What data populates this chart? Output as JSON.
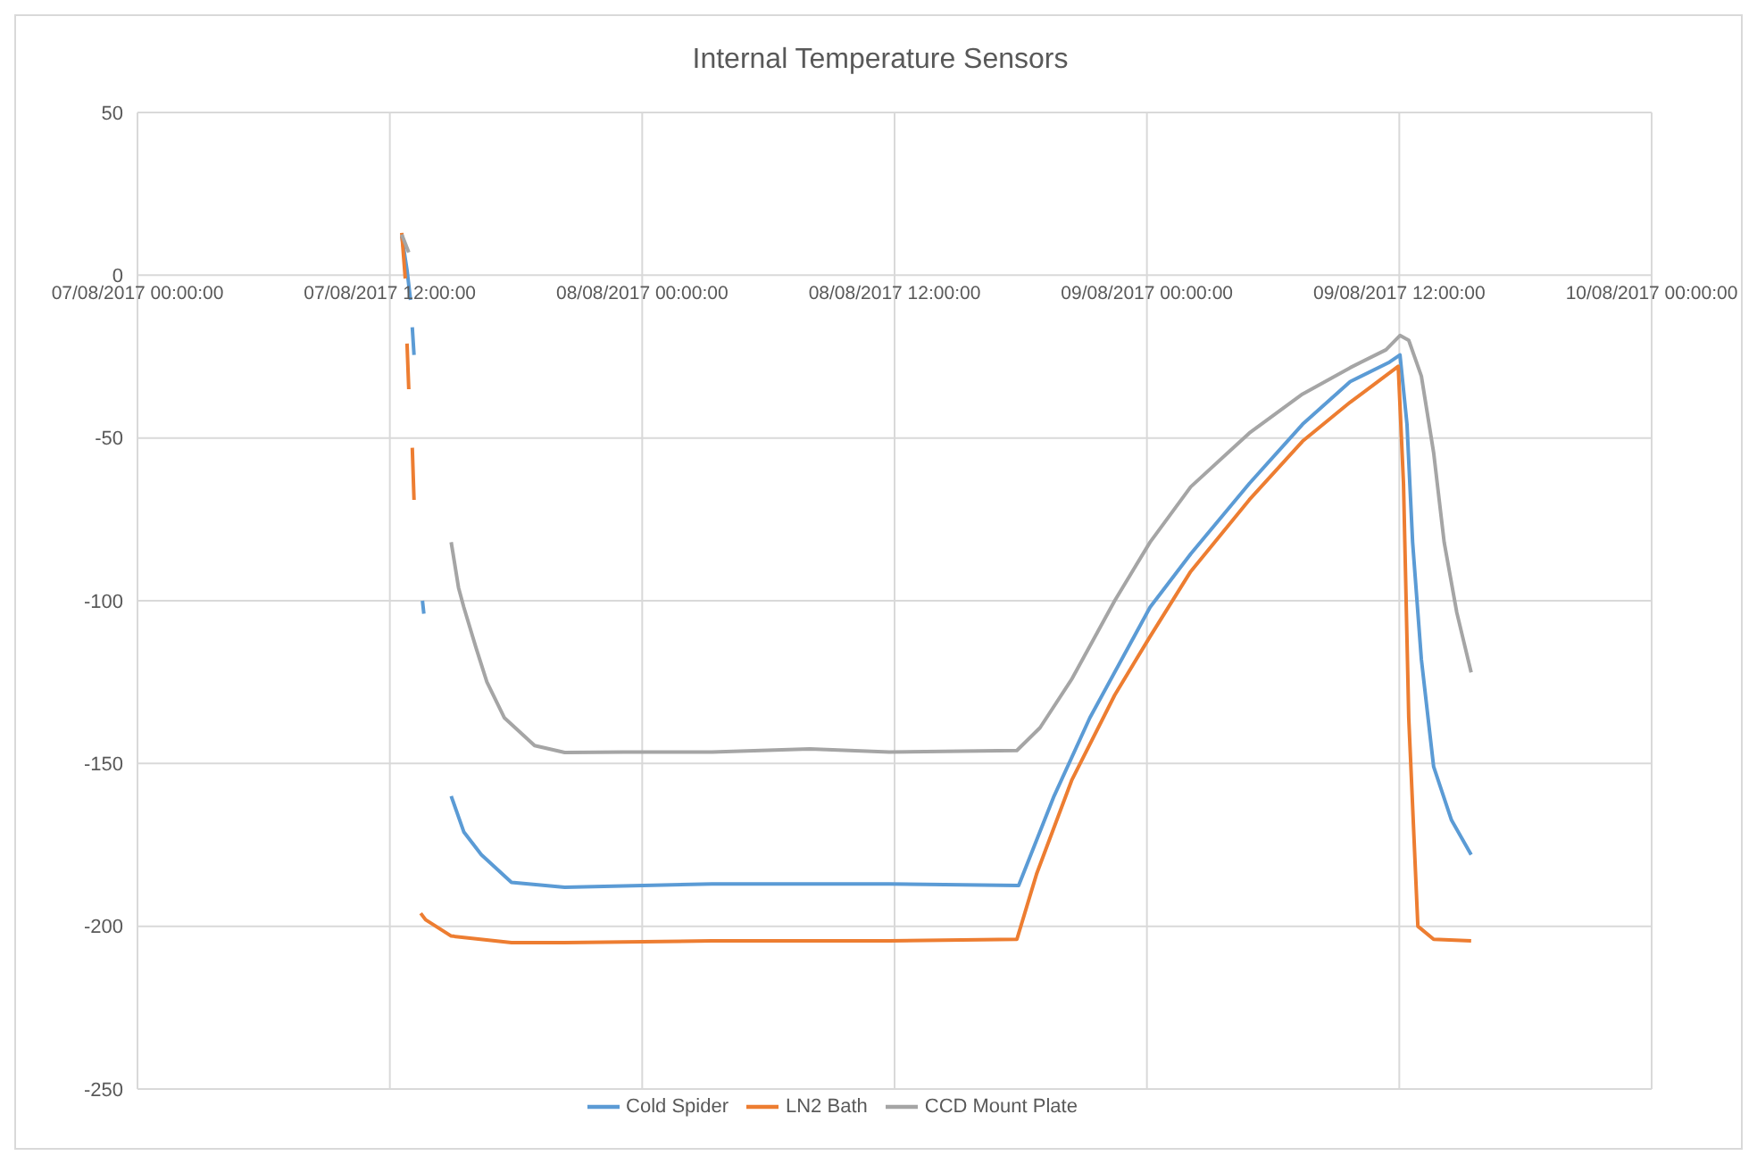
{
  "chart_data": {
    "type": "line",
    "title": "Internal Temperature Sensors",
    "xlim": [
      "2017-08-07T00:00",
      "2017-08-10T00:00"
    ],
    "xticks": [
      {
        "value": "2017-08-07T00:00",
        "label": "07/08/2017 00:00:00"
      },
      {
        "value": "2017-08-07T12:00",
        "label": "07/08/2017 12:00:00"
      },
      {
        "value": "2017-08-08T00:00",
        "label": "08/08/2017 00:00:00"
      },
      {
        "value": "2017-08-08T12:00",
        "label": "08/08/2017 12:00:00"
      },
      {
        "value": "2017-08-09T00:00",
        "label": "09/08/2017 00:00:00"
      },
      {
        "value": "2017-08-09T12:00",
        "label": "09/08/2017 12:00:00"
      },
      {
        "value": "2017-08-10T00:00",
        "label": "10/08/2017 00:00:00"
      }
    ],
    "ylim": [
      -250,
      50
    ],
    "yticks": [
      -250,
      -200,
      -150,
      -100,
      -50,
      0,
      50
    ],
    "grid": true,
    "legend": "bottom",
    "marker": "none",
    "line_style": "solid",
    "series": [
      {
        "name": "Cold Spider",
        "color": "#5b9bd5",
        "x": [
          "2017-08-07T12:34",
          "2017-08-07T12:49",
          "2017-08-07T12:59",
          "2017-08-07T13:01",
          "2017-08-07T13:04",
          "2017-08-07T13:09",
          "2017-08-07T13:20",
          "2017-08-07T13:33",
          "2017-08-07T13:37",
          "2017-08-07T14:00",
          "2017-08-07T14:55",
          "2017-08-07T15:31",
          "2017-08-07T16:21",
          "2017-08-07T17:47",
          "2017-08-07T20:19",
          "2017-08-08T03:19",
          "2017-08-08T11:45",
          "2017-08-08T17:54",
          "2017-08-08T19:35",
          "2017-08-08T21:17",
          "2017-08-09T00:09",
          "2017-08-09T02:05",
          "2017-08-09T04:52",
          "2017-08-09T07:24",
          "2017-08-09T09:40",
          "2017-08-09T11:32",
          "2017-08-09T12:02",
          "2017-08-09T12:22",
          "2017-08-09T12:38",
          "2017-08-09T13:03",
          "2017-08-09T13:38",
          "2017-08-09T14:29",
          "2017-08-09T15:25"
        ],
        "values": [
          12,
          1.6,
          -7.6,
          null,
          -16,
          -24.5,
          null,
          -100,
          -104,
          null,
          -160,
          -171,
          -178,
          -186.5,
          -188,
          -187,
          -187,
          -187.5,
          -160,
          -136,
          -102,
          -85.6,
          -64,
          -45.8,
          -32.7,
          -26.7,
          -24.5,
          -45.8,
          -82,
          -118,
          -151,
          -167.4,
          -178
        ]
      },
      {
        "name": "LN2 Bath",
        "color": "#ed7d31",
        "x": [
          "2017-08-07T12:34",
          "2017-08-07T12:44",
          "2017-08-07T12:46",
          "2017-08-07T12:49",
          "2017-08-07T12:54",
          "2017-08-07T12:59",
          "2017-08-07T13:04",
          "2017-08-07T13:09",
          "2017-08-07T13:20",
          "2017-08-07T13:28",
          "2017-08-07T13:42",
          "2017-08-07T14:55",
          "2017-08-07T17:47",
          "2017-08-07T20:19",
          "2017-08-08T03:19",
          "2017-08-08T11:45",
          "2017-08-08T17:49",
          "2017-08-08T18:45",
          "2017-08-08T20:26",
          "2017-08-08T22:28",
          "2017-08-09T00:09",
          "2017-08-09T02:05",
          "2017-08-09T04:52",
          "2017-08-09T07:24",
          "2017-08-09T09:40",
          "2017-08-09T11:57",
          "2017-08-09T12:12",
          "2017-08-09T12:27",
          "2017-08-09T12:53",
          "2017-08-09T13:38",
          "2017-08-09T15:25"
        ],
        "values": [
          13,
          -1,
          null,
          -21,
          -35,
          null,
          -53,
          -69,
          null,
          -196,
          -198,
          -203,
          -205,
          -205,
          -204.5,
          -204.5,
          -204,
          -184,
          -155,
          -129,
          -111,
          -91,
          -69,
          -51,
          -39,
          -28,
          -64,
          -136,
          -200,
          -204,
          -204.5
        ]
      },
      {
        "name": "CCD Mount Plate",
        "color": "#a5a5a5",
        "x": [
          "2017-08-07T12:34",
          "2017-08-07T12:54",
          "2017-08-07T13:30",
          "2017-08-07T14:55",
          "2017-08-07T15:16",
          "2017-08-07T15:31",
          "2017-08-07T16:06",
          "2017-08-07T16:37",
          "2017-08-07T17:27",
          "2017-08-07T18:53",
          "2017-08-07T20:19",
          "2017-08-07T23:06",
          "2017-08-08T03:19",
          "2017-08-08T07:58",
          "2017-08-08T11:45",
          "2017-08-08T17:49",
          "2017-08-08T18:55",
          "2017-08-08T20:26",
          "2017-08-08T22:28",
          "2017-08-09T00:09",
          "2017-08-09T02:05",
          "2017-08-09T04:52",
          "2017-08-09T07:24",
          "2017-08-09T09:40",
          "2017-08-09T11:22",
          "2017-08-09T12:02",
          "2017-08-09T12:27",
          "2017-08-09T13:03",
          "2017-08-09T13:38",
          "2017-08-09T14:08",
          "2017-08-09T14:44",
          "2017-08-09T15:25"
        ],
        "values": [
          12.5,
          7,
          null,
          -82,
          -96,
          -102,
          -114.5,
          -125,
          -136,
          -144.5,
          -146.6,
          -146.5,
          -146.5,
          -145.5,
          -146.5,
          -146,
          -139,
          -124,
          -100,
          -82,
          -65,
          -48.5,
          -36.5,
          -28.4,
          -22.9,
          -18.5,
          -20,
          -31,
          -54.5,
          -82,
          -103.6,
          -122
        ]
      }
    ]
  }
}
